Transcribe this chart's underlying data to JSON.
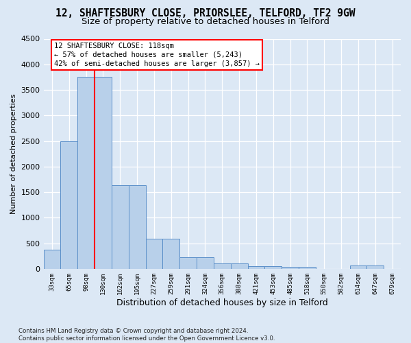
{
  "title": "12, SHAFTESBURY CLOSE, PRIORSLEE, TELFORD, TF2 9GW",
  "subtitle": "Size of property relative to detached houses in Telford",
  "xlabel": "Distribution of detached houses by size in Telford",
  "ylabel": "Number of detached properties",
  "footer_line1": "Contains HM Land Registry data © Crown copyright and database right 2024.",
  "footer_line2": "Contains public sector information licensed under the Open Government Licence v3.0.",
  "categories": [
    "33sqm",
    "65sqm",
    "98sqm",
    "130sqm",
    "162sqm",
    "195sqm",
    "227sqm",
    "259sqm",
    "291sqm",
    "324sqm",
    "356sqm",
    "388sqm",
    "421sqm",
    "453sqm",
    "485sqm",
    "518sqm",
    "550sqm",
    "582sqm",
    "614sqm",
    "647sqm",
    "679sqm"
  ],
  "bar_heights": [
    370,
    2500,
    3750,
    3750,
    1640,
    1640,
    590,
    590,
    230,
    230,
    105,
    105,
    55,
    55,
    40,
    40,
    0,
    0,
    65,
    65,
    0
  ],
  "ylim": [
    0,
    4500
  ],
  "yticks": [
    0,
    500,
    1000,
    1500,
    2000,
    2500,
    3000,
    3500,
    4000,
    4500
  ],
  "bar_color": "#b8d0ea",
  "bar_edge_color": "#5b8fc9",
  "vline_color": "red",
  "annotation_text": "12 SHAFTESBURY CLOSE: 118sqm\n← 57% of detached houses are smaller (5,243)\n42% of semi-detached houses are larger (3,857) →",
  "background_color": "#dce8f5",
  "grid_color": "#ffffff",
  "title_fontsize": 10.5,
  "subtitle_fontsize": 9.5
}
